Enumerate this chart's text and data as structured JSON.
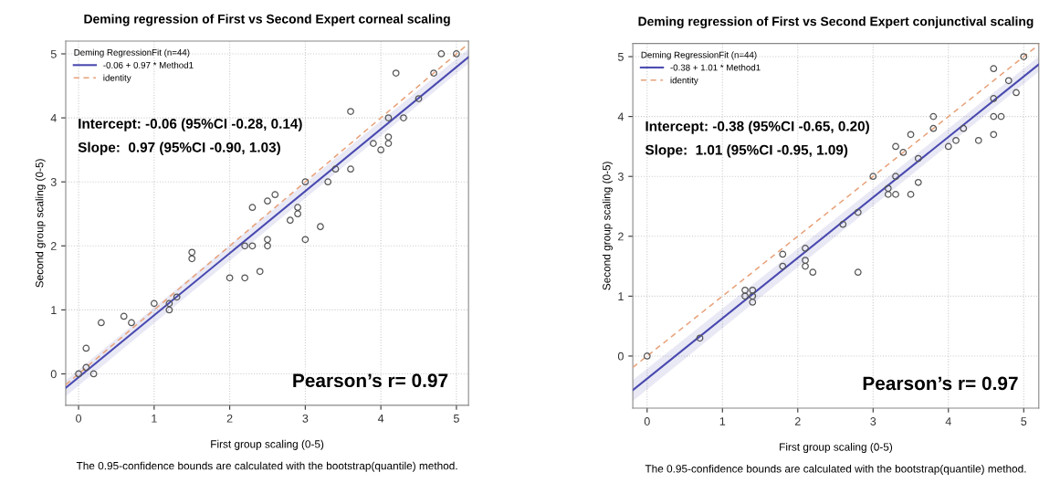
{
  "chart_data": [
    {
      "type": "scatter",
      "title": "Deming regression of First vs Second Expert corneal scaling",
      "xlabel": "First group scaling (0-5)",
      "ylabel": "Second group scaling (0-5)",
      "legend_title": "Deming RegressionFit (n=44)",
      "annotations": [
        "Intercept: -0.06 (95%CI -0.28, 0.14)",
        "Slope:  0.97 (95%CI -0.90, 1.03)",
        "Pearson’s r= 0.97",
        "The 0.95-confidence bounds are calculated with the bootstrap(quantile) method."
      ],
      "xlim": [
        -0.17,
        5.16
      ],
      "ylim": [
        -0.49,
        5.2
      ],
      "xticks": [
        0,
        1,
        2,
        3,
        4,
        5
      ],
      "yticks": [
        0,
        1,
        2,
        3,
        4,
        5
      ],
      "grid": true,
      "legend": "top left",
      "series": [
        {
          "color": "#555555",
          "marker": "circle",
          "x": [
            0,
            0.1,
            0.1,
            0.2,
            0.3,
            0.6,
            0.7,
            1,
            1.2,
            1.2,
            1.3,
            1.5,
            1.5,
            2,
            2.2,
            2.2,
            2.3,
            2.3,
            2.4,
            2.5,
            2.5,
            2.5,
            2.6,
            2.8,
            2.9,
            2.9,
            3,
            3,
            3.2,
            3.3,
            3.4,
            3.6,
            3.6,
            3.9,
            4,
            4.1,
            4.1,
            4.1,
            4.2,
            4.3,
            4.5,
            4.7,
            4.8,
            5
          ],
          "values": [
            0,
            0.1,
            0.4,
            0,
            0.8,
            0.9,
            0.8,
            1.1,
            1.0,
            1.1,
            1.2,
            1.9,
            1.8,
            1.5,
            1.5,
            2.0,
            2.0,
            2.6,
            1.6,
            2.0,
            2.1,
            2.7,
            2.8,
            2.4,
            2.5,
            2.6,
            3.0,
            2.1,
            2.3,
            3.0,
            3.2,
            3.2,
            4.1,
            3.6,
            3.5,
            3.6,
            3.7,
            4.0,
            4.7,
            4.0,
            4.3,
            4.7,
            5.0,
            5.0
          ]
        },
        {
          "type": "line",
          "name": "-0.06 + 0.97 * Method1",
          "color": "#4a4ab0",
          "line_style": "solid",
          "marker": "none",
          "x": [
            -0.17,
            5.16
          ],
          "values": [
            -0.22,
            4.95
          ],
          "lower": [
            -0.35,
            4.85
          ],
          "upper": [
            -0.1,
            5.08
          ]
        },
        {
          "type": "line",
          "name": "identity",
          "color": "#e8a27a",
          "line_style": "dashed",
          "marker": "none",
          "x": [
            -0.17,
            5.16
          ],
          "values": [
            -0.17,
            5.16
          ]
        }
      ]
    },
    {
      "type": "scatter",
      "title": "Deming regression of First vs Second Expert conjunctival scaling",
      "xlabel": "First group scaling (0-5)",
      "ylabel": "Second group scaling (0-5)",
      "legend_title": "Deming RegressionFit (n=44)",
      "annotations": [
        "Intercept: -0.38 (95%CI -0.65, 0.20)",
        "Slope:  1.01 (95%CI -0.95, 1.09)",
        "Pearson’s r= 0.97",
        "The 0.95-confidence bounds are calculated with the bootstrap(quantile) method."
      ],
      "xlim": [
        -0.19,
        5.2
      ],
      "ylim": [
        -0.87,
        5.22
      ],
      "xticks": [
        0,
        1,
        2,
        3,
        4,
        5
      ],
      "yticks": [
        0,
        1,
        2,
        3,
        4,
        5
      ],
      "grid": true,
      "legend": "top left",
      "series": [
        {
          "color": "#555555",
          "marker": "circle",
          "x": [
            5,
            4.6,
            4.8,
            4.9,
            4.6,
            4.6,
            4.7,
            4.6,
            4.4,
            4.2,
            4.1,
            4.0,
            3.8,
            3.8,
            3.5,
            3.3,
            3.4,
            3.6,
            3.0,
            3.3,
            3.2,
            3.2,
            3.3,
            3.5,
            3.6,
            2.8,
            2.8,
            2.6,
            0,
            0.7,
            1.3,
            1.3,
            1.4,
            1.4,
            1.4,
            1.8,
            1.8,
            2.1,
            2.1,
            2.1,
            2.2
          ],
          "values": [
            5.0,
            4.8,
            4.6,
            4.4,
            4.3,
            4.0,
            4.0,
            3.7,
            3.6,
            3.8,
            3.6,
            3.5,
            4.0,
            3.8,
            3.7,
            3.5,
            3.4,
            3.3,
            3.0,
            3.0,
            2.8,
            2.7,
            2.7,
            2.7,
            2.9,
            2.4,
            1.4,
            2.2,
            0,
            0.3,
            1.1,
            1.0,
            1.1,
            1.0,
            0.9,
            1.7,
            1.5,
            1.8,
            1.6,
            1.5,
            1.4
          ]
        },
        {
          "type": "line",
          "name": "-0.38 + 1.01 * Method1",
          "color": "#4a4ab0",
          "line_style": "solid",
          "marker": "none",
          "x": [
            -0.19,
            5.2
          ],
          "values": [
            -0.57,
            4.87
          ],
          "lower": [
            -0.75,
            4.75
          ],
          "upper": [
            -0.4,
            5.0
          ]
        },
        {
          "type": "line",
          "name": "identity",
          "color": "#e8a27a",
          "line_style": "dashed",
          "marker": "none",
          "x": [
            -0.19,
            5.2
          ],
          "values": [
            -0.19,
            5.2
          ]
        }
      ]
    }
  ]
}
